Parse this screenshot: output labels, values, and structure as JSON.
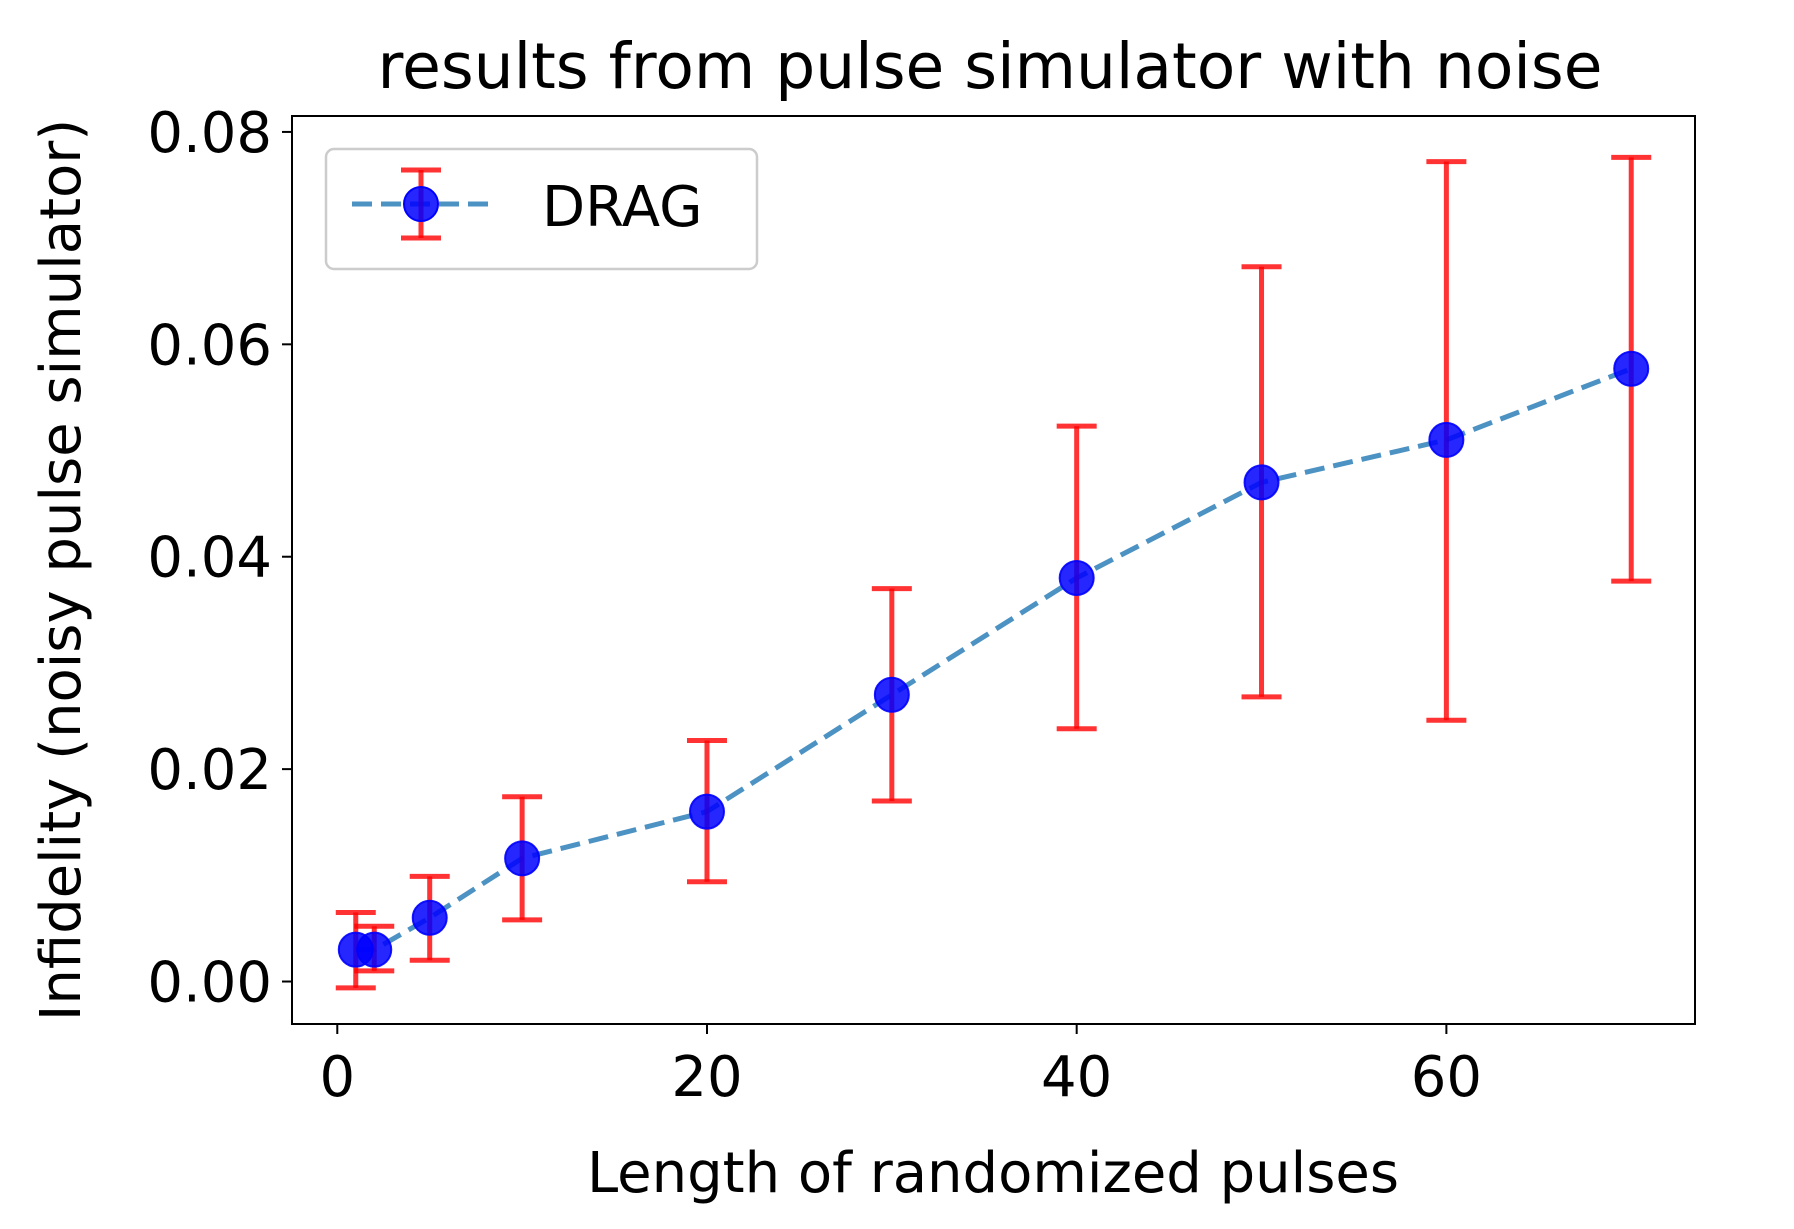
{
  "chart_data": {
    "type": "line",
    "title": "results from pulse simulator with noise",
    "xlabel": "Length of randomized pulses",
    "ylabel": "Infidelity (noisy pulse simulator)",
    "xlim": [
      -2.45,
      73.45
    ],
    "ylim": [
      -0.004,
      0.0815
    ],
    "xticks": [
      0,
      20,
      40,
      60
    ],
    "xtick_labels": [
      "0",
      "20",
      "40",
      "60"
    ],
    "yticks": [
      0.0,
      0.02,
      0.04,
      0.06,
      0.08
    ],
    "ytick_labels": [
      "0.00",
      "0.02",
      "0.04",
      "0.06",
      "0.08"
    ],
    "grid": false,
    "legend_position": "upper left",
    "series": [
      {
        "name": "DRAG",
        "line_style": "dashed",
        "line_color": "#1f77b4",
        "marker_color": "#0000ff",
        "errorbar_color": "#ff0000",
        "x": [
          1,
          2,
          5,
          10,
          20,
          30,
          40,
          50,
          60,
          70
        ],
        "y": [
          0.003,
          0.003,
          0.006,
          0.0116,
          0.016,
          0.027,
          0.038,
          0.047,
          0.051,
          0.0577
        ],
        "yerr_lower": [
          0.0036,
          0.002,
          0.004,
          0.0058,
          0.0066,
          0.01,
          0.0142,
          0.0202,
          0.0264,
          0.02
        ],
        "yerr_upper": [
          0.0035,
          0.0022,
          0.0039,
          0.0058,
          0.0067,
          0.01,
          0.0143,
          0.0203,
          0.0262,
          0.0199
        ]
      }
    ]
  }
}
